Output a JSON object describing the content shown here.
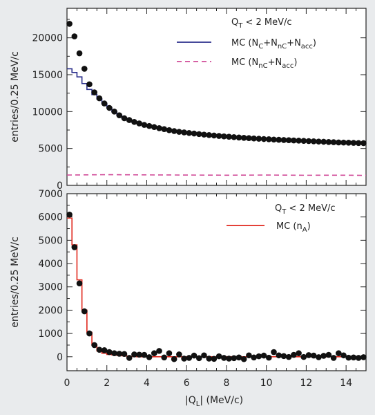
{
  "chart_data": [
    {
      "type": "scatter",
      "panel": "top",
      "xlim": [
        0,
        15
      ],
      "ylim": [
        0,
        24000
      ],
      "yticks": [
        0,
        5000,
        10000,
        15000,
        20000
      ],
      "ylabel": "entries/0.25 MeV/c",
      "annotation": "Q_T < 2 MeV/c",
      "annotation_parts": {
        "main": "Q",
        "sub": "T",
        "rest": " < 2 MeV/c"
      },
      "series": [
        {
          "name": "data",
          "x": [
            0.125,
            0.375,
            0.625,
            0.875,
            1.125,
            1.375,
            1.625,
            1.875,
            2.125,
            2.375,
            2.625,
            2.875,
            3.125,
            3.375,
            3.625,
            3.875,
            4.125,
            4.375,
            4.625,
            4.875,
            5.125,
            5.375,
            5.625,
            5.875,
            6.125,
            6.375,
            6.625,
            6.875,
            7.125,
            7.375,
            7.625,
            7.875,
            8.125,
            8.375,
            8.625,
            8.875,
            9.125,
            9.375,
            9.625,
            9.875,
            10.125,
            10.375,
            10.625,
            10.875,
            11.125,
            11.375,
            11.625,
            11.875,
            12.125,
            12.375,
            12.625,
            12.875,
            13.125,
            13.375,
            13.625,
            13.875,
            14.125,
            14.375,
            14.625,
            14.875
          ],
          "y": [
            21900,
            20200,
            17900,
            15800,
            13700,
            12600,
            11800,
            11100,
            10500,
            10000,
            9500,
            9100,
            8850,
            8600,
            8400,
            8200,
            8050,
            7900,
            7750,
            7620,
            7480,
            7360,
            7260,
            7180,
            7100,
            7030,
            6950,
            6880,
            6820,
            6760,
            6700,
            6640,
            6590,
            6540,
            6490,
            6440,
            6400,
            6360,
            6320,
            6280,
            6250,
            6210,
            6180,
            6150,
            6120,
            6090,
            6060,
            6030,
            6000,
            5970,
            5940,
            5910,
            5880,
            5850,
            5820,
            5800,
            5780,
            5760,
            5740,
            5720
          ]
        },
        {
          "name": "MC (N_C+N_nC+N_acc)",
          "label_parts": [
            {
              "t": "MC (N"
            },
            {
              "s": "C"
            },
            {
              "t": "+N"
            },
            {
              "s": "nC"
            },
            {
              "t": "+N"
            },
            {
              "s": "acc"
            },
            {
              "t": ")"
            }
          ],
          "color": "#2b2f8c",
          "style": "step",
          "x": [
            0.125,
            0.375,
            0.625,
            0.875,
            1.125,
            1.375,
            1.625,
            1.875,
            2.125,
            2.375,
            2.625,
            2.875,
            3.125,
            3.375,
            3.625,
            3.875,
            4.125,
            4.375,
            4.625,
            4.875,
            5.125,
            5.375,
            5.625,
            5.875,
            6.125,
            6.375,
            6.625,
            6.875,
            7.125,
            7.375,
            7.625,
            7.875,
            8.125,
            8.375,
            8.625,
            8.875,
            9.125,
            9.375,
            9.625,
            9.875,
            10.125,
            10.375,
            10.625,
            10.875,
            11.125,
            11.375,
            11.625,
            11.875,
            12.125,
            12.375,
            12.625,
            12.875,
            13.125,
            13.375,
            13.625,
            13.875,
            14.125,
            14.375,
            14.625,
            14.875
          ],
          "y": [
            15800,
            15300,
            14700,
            13800,
            13000,
            12300,
            11700,
            11100,
            10500,
            10000,
            9500,
            9100,
            8850,
            8600,
            8400,
            8200,
            8050,
            7900,
            7750,
            7620,
            7480,
            7360,
            7260,
            7180,
            7100,
            7030,
            6950,
            6880,
            6820,
            6760,
            6700,
            6640,
            6590,
            6540,
            6490,
            6440,
            6400,
            6360,
            6320,
            6280,
            6250,
            6210,
            6180,
            6150,
            6120,
            6090,
            6060,
            6030,
            6000,
            5970,
            5940,
            5910,
            5880,
            5850,
            5820,
            5800,
            5780,
            5760,
            5740,
            5720
          ]
        },
        {
          "name": "MC (N_nC+N_acc)",
          "label_parts": [
            {
              "t": "MC (N"
            },
            {
              "s": "nC"
            },
            {
              "t": "+N"
            },
            {
              "s": "acc"
            },
            {
              "t": ")"
            }
          ],
          "color": "#d04a98",
          "style": "dashed",
          "x": [
            0,
            2,
            4,
            6,
            8,
            10,
            12,
            14,
            15
          ],
          "y": [
            1400,
            1450,
            1420,
            1400,
            1380,
            1400,
            1370,
            1380,
            1350
          ]
        }
      ]
    },
    {
      "type": "scatter",
      "panel": "bottom",
      "xlim": [
        0,
        15
      ],
      "ylim": [
        -600,
        7000
      ],
      "yticks": [
        0,
        1000,
        2000,
        3000,
        4000,
        5000,
        6000,
        7000
      ],
      "xticks": [
        0,
        2,
        4,
        6,
        8,
        10,
        12,
        14
      ],
      "ylabel": "entries/0.25 MeV/c",
      "xlabel": "|Q_L| (MeV/c)",
      "xlabel_parts": [
        {
          "t": "|Q"
        },
        {
          "s": "L"
        },
        {
          "t": "| (MeV/c)"
        }
      ],
      "annotation": "Q_T < 2 MeV/c",
      "annotation_parts": {
        "main": "Q",
        "sub": "T",
        "rest": " < 2 MeV/c"
      },
      "series": [
        {
          "name": "data",
          "x": [
            0.125,
            0.375,
            0.625,
            0.875,
            1.125,
            1.375,
            1.625,
            1.875,
            2.125,
            2.375,
            2.625,
            2.875,
            3.125,
            3.375,
            3.625,
            3.875,
            4.125,
            4.375,
            4.625,
            4.875,
            5.125,
            5.375,
            5.625,
            5.875,
            6.125,
            6.375,
            6.625,
            6.875,
            7.125,
            7.375,
            7.625,
            7.875,
            8.125,
            8.375,
            8.625,
            8.875,
            9.125,
            9.375,
            9.625,
            9.875,
            10.125,
            10.375,
            10.625,
            10.875,
            11.125,
            11.375,
            11.625,
            11.875,
            12.125,
            12.375,
            12.625,
            12.875,
            13.125,
            13.375,
            13.625,
            13.875,
            14.125,
            14.375,
            14.625,
            14.875
          ],
          "y": [
            6100,
            4700,
            3150,
            1950,
            1000,
            500,
            300,
            280,
            200,
            150,
            130,
            120,
            -50,
            100,
            90,
            80,
            -20,
            150,
            250,
            -30,
            150,
            -100,
            100,
            -80,
            -50,
            50,
            -60,
            60,
            -80,
            -90,
            20,
            -50,
            -80,
            -60,
            -30,
            -100,
            60,
            -30,
            20,
            50,
            -40,
            200,
            60,
            30,
            -10,
            80,
            150,
            -10,
            70,
            50,
            -20,
            40,
            80,
            -50,
            150,
            60,
            -40,
            -30,
            -50,
            -20
          ]
        },
        {
          "name": "MC (n_A)",
          "label_parts": [
            {
              "t": "MC (n"
            },
            {
              "s": "A"
            },
            {
              "t": ")"
            }
          ],
          "color": "#e0261b",
          "style": "step",
          "x": [
            0.125,
            0.375,
            0.625,
            0.875,
            1.125,
            1.375,
            1.625,
            1.875,
            2.125,
            2.375,
            2.625,
            2.875,
            3.125,
            3.375,
            3.625,
            3.875,
            4.125,
            4.375,
            4.625,
            4.875,
            5.125,
            5.375,
            5.625,
            5.875,
            6.125,
            6.375,
            6.625,
            6.875,
            7.125,
            7.375,
            7.625,
            7.875,
            8.125,
            8.375,
            8.625,
            8.875,
            9.125,
            9.375,
            9.625,
            9.875,
            10.125,
            10.375,
            10.625,
            10.875,
            11.125,
            11.375,
            11.625,
            11.875,
            12.125,
            12.375,
            12.625,
            12.875,
            13.125,
            13.375,
            13.625,
            13.875,
            14.125,
            14.375,
            14.625,
            14.875
          ],
          "y": [
            5950,
            4800,
            3300,
            2000,
            1050,
            500,
            250,
            150,
            100,
            80,
            60,
            40,
            20,
            10,
            0,
            0,
            0,
            0,
            0,
            0,
            0,
            0,
            0,
            0,
            0,
            0,
            0,
            0,
            0,
            0,
            0,
            0,
            0,
            0,
            0,
            0,
            0,
            0,
            0,
            0,
            0,
            0,
            0,
            0,
            0,
            0,
            0,
            0,
            0,
            0,
            0,
            0,
            0,
            0,
            0,
            0,
            0,
            0,
            0,
            0
          ]
        }
      ]
    }
  ]
}
